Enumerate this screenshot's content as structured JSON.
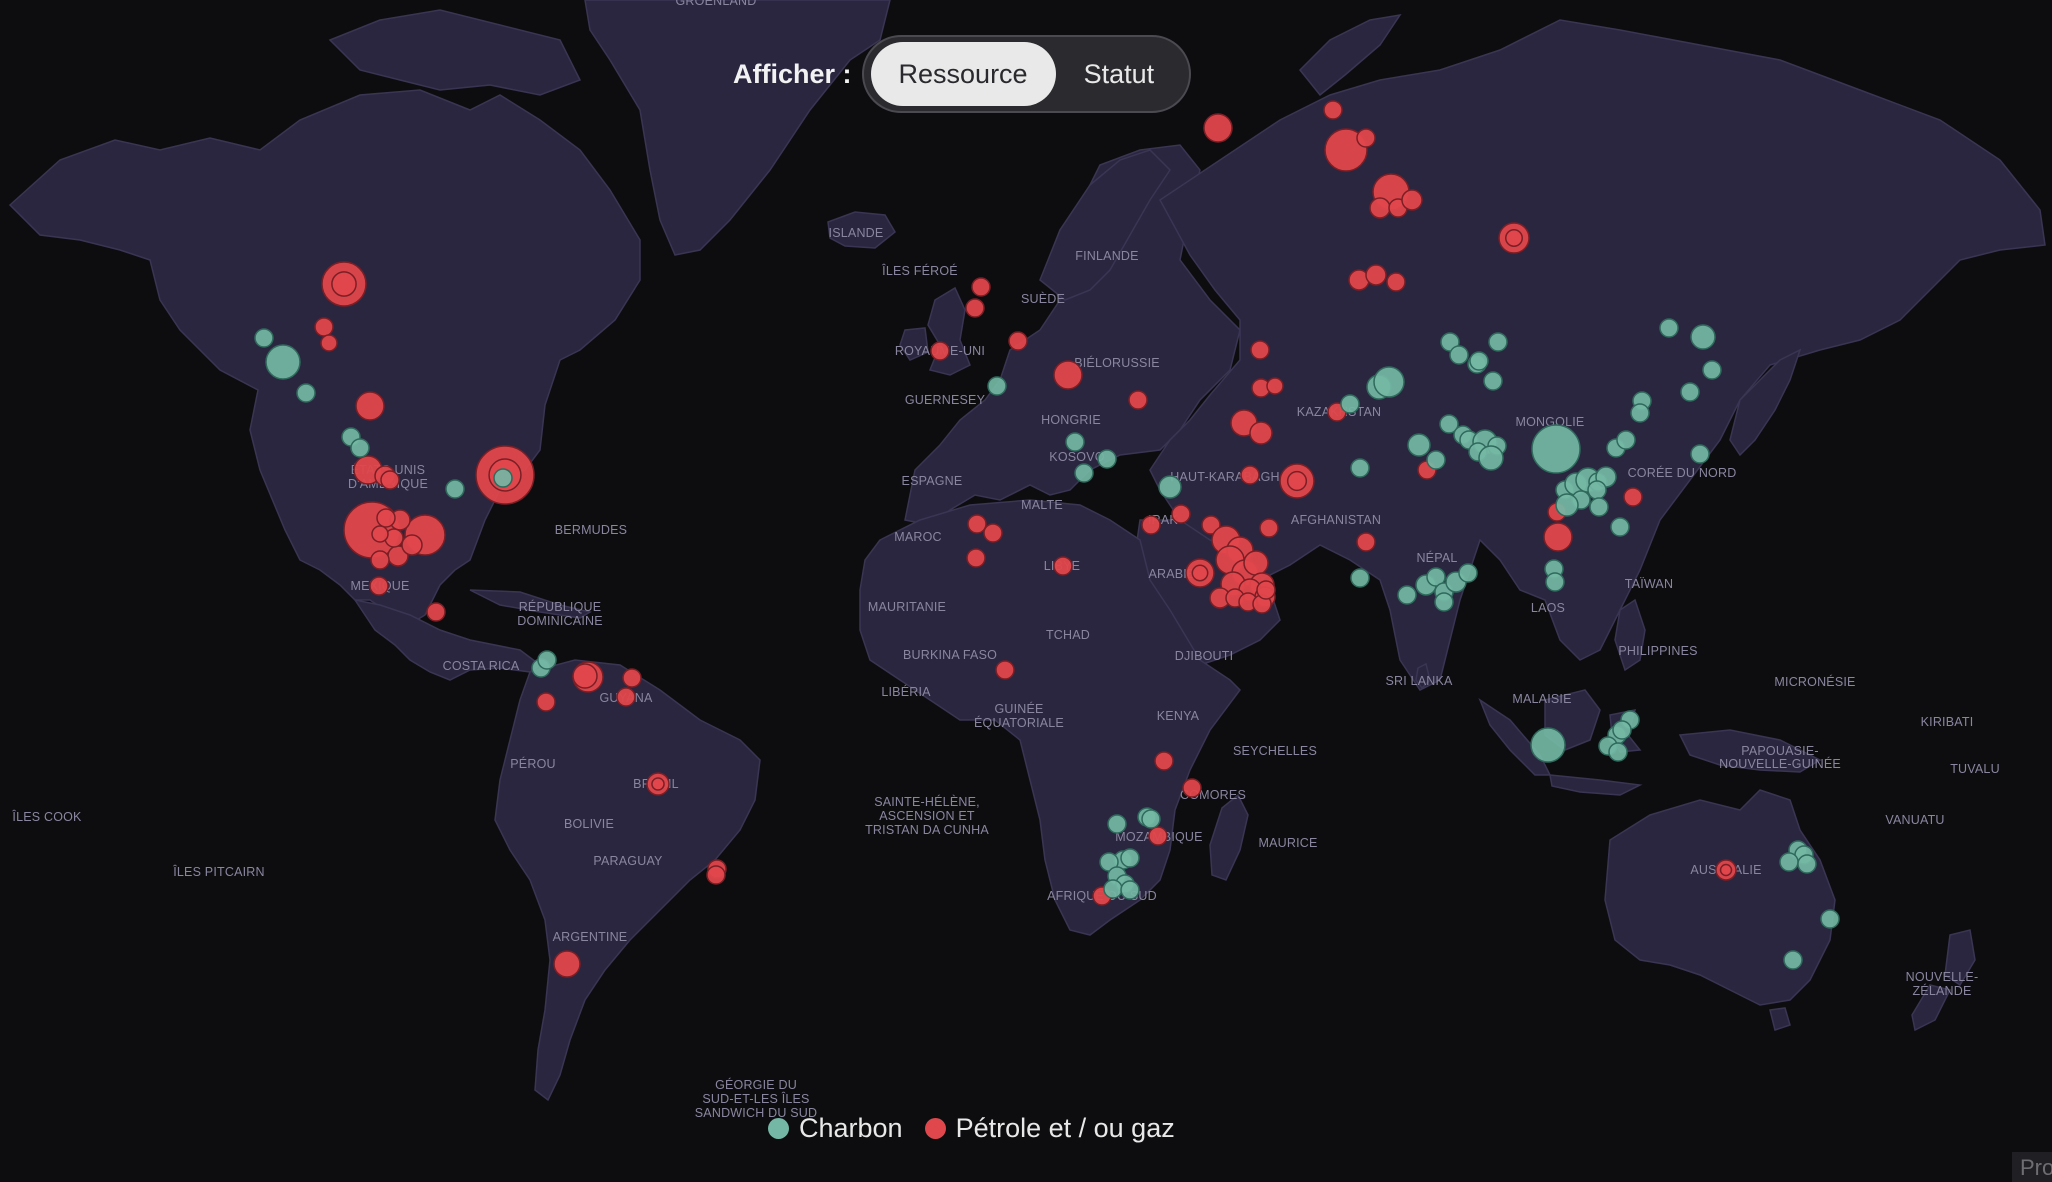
{
  "controls": {
    "display_label": "Afficher :",
    "options": [
      "Ressource",
      "Statut"
    ],
    "selected": "Ressource"
  },
  "legend": {
    "items": [
      {
        "label": "Charbon",
        "color": "#74b7a4"
      },
      {
        "label": "Pétrole et / ou gaz",
        "color": "#e0474c"
      }
    ]
  },
  "corner_tab": {
    "text": "Pro"
  },
  "map": {
    "background": "#0d0d10",
    "land_color": "#2a2640",
    "labels": {
      "groenland": "GROENLAND",
      "islande": "ISLANDE",
      "iles_feroe": "ÎLES FÉROÉ",
      "finlande": "FINLANDE",
      "suede": "SUÈDE",
      "royaume_uni": "ROYAUME-UNI",
      "bielorussie": "BIÉLORUSSIE",
      "guernesey": "GUERNESEY",
      "hongrie": "HONGRIE",
      "kosovo": "KOSOVO",
      "espagne": "ESPAGNE",
      "malte": "MALTE",
      "maroc": "MAROC",
      "libye": "LIBYE",
      "mauritanie": "MAURITANIE",
      "tchad": "TCHAD",
      "burkina_faso": "BURKINA FASO",
      "liberia": "LIBÉRIA",
      "guinee_eq_1": "GUINÉE",
      "guinee_eq_2": "ÉQUATORIALE",
      "djibouti": "DJIBOUTI",
      "kenya": "KENYA",
      "seychelles": "SEYCHELLES",
      "comores": "COMORES",
      "mozambique": "MOZAMBIQUE",
      "maurice": "MAURICE",
      "afrique_du_sud": "AFRIQUE DU SUD",
      "sainte_helene_1": "SAINTE-HÉLÈNE,",
      "sainte_helene_2": "ASCENSION ET",
      "sainte_helene_3": "TRISTAN DA CUNHA",
      "haut_karabagh": "HAUT-KARABAGH",
      "arabie": "ARABIE",
      "irak": "IRAK",
      "kazakhstan": "KAZAKHSTAN",
      "afghanistan": "AFGHANISTAN",
      "mongolie": "MONGOLIE",
      "coree_du_nord": "CORÉE DU NORD",
      "nepal": "NÉPAL",
      "taiwan": "TAÏWAN",
      "laos": "LAOS",
      "philippines": "PHILIPPINES",
      "sri_lanka": "SRI LANKA",
      "malaisie": "MALAISIE",
      "micronesie": "MICRONÉSIE",
      "kiribati": "KIRIBATI",
      "papouasie_1": "PAPOUASIE-",
      "papouasie_2": "NOUVELLE-GUINÉE",
      "tuvalu": "TUVALU",
      "vanuatu": "VANUATU",
      "australie": "AUSTRALIE",
      "nz_1": "NOUVELLE-",
      "nz_2": "ZÉLANDE",
      "etats_unis_1": "ÉTATS-UNIS",
      "etats_unis_2": "D'AMÉRIQUE",
      "bermudes": "BERMUDES",
      "mexique": "MEXIQUE",
      "rep_dom_1": "RÉPUBLIQUE",
      "rep_dom_2": "DOMINICAINE",
      "costa_rica": "COSTA RICA",
      "guyana": "GUYANA",
      "perou": "PÉROU",
      "bresil": "BRÉSIL",
      "bolivie": "BOLIVIE",
      "paraguay": "PARAGUAY",
      "argentine": "ARGENTINE",
      "iles_cook": "ÎLES COOK",
      "iles_pitcairn": "ÎLES PITCAIRN",
      "georgie_1": "GÉORGIE DU",
      "georgie_2": "SUD-ET-LES ÎLES",
      "georgie_3": "SANDWICH DU SUD"
    }
  }
}
